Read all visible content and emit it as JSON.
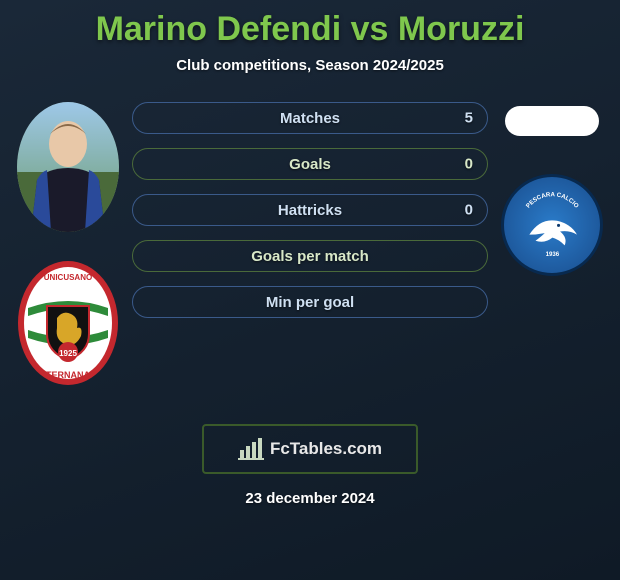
{
  "title_color": "#7fc74d",
  "title": "Marino Defendi vs Moruzzi",
  "subtitle": "Club competitions, Season 2024/2025",
  "bars": [
    {
      "label": "Matches",
      "value": "5",
      "border": "#3a5a8a",
      "text": "#cfe0f2"
    },
    {
      "label": "Goals",
      "value": "0",
      "border": "#4a6a3a",
      "text": "#d8e8c8"
    },
    {
      "label": "Hattricks",
      "value": "0",
      "border": "#3a5a8a",
      "text": "#cfe0f2"
    },
    {
      "label": "Goals per match",
      "value": "",
      "border": "#4a6a3a",
      "text": "#d8e8c8"
    },
    {
      "label": "Min per goal",
      "value": "",
      "border": "#3a5a8a",
      "text": "#cfe0f2"
    }
  ],
  "club_left": {
    "name": "Unicusano Ternana",
    "top_text": "UNICUSANO",
    "bottom_text": "TERNANA",
    "year": "1925",
    "colors": {
      "outer_red": "#c4282e",
      "green": "#2e8b3a",
      "gold": "#d8a628",
      "black": "#111"
    }
  },
  "club_right": {
    "name": "Pescara Calcio",
    "arc_text": "PESCARA CALCIO",
    "year": "1936",
    "colors": {
      "blue": "#2a7bc9",
      "white": "#ffffff"
    }
  },
  "brand": "FcTables.com",
  "footer_date": "23 december 2024"
}
